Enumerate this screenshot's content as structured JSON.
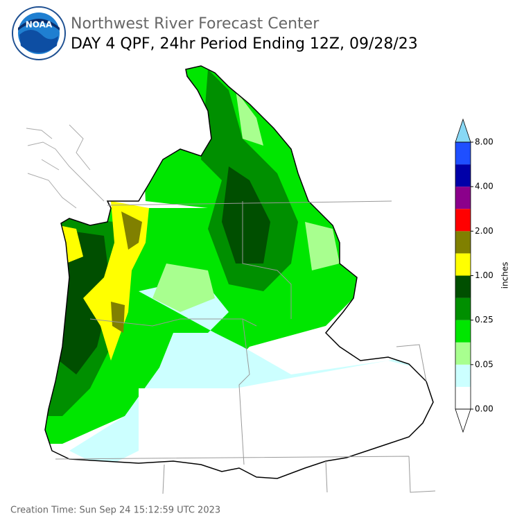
{
  "header": {
    "logo_text": "NOAA",
    "title": "Northwest River Forecast Center",
    "subtitle": "DAY 4 QPF, 24hr Period Ending 12Z, 09/28/23"
  },
  "legend": {
    "label": "inches",
    "colors": [
      "#ffffff",
      "#ccffff",
      "#a8ff8f",
      "#00e600",
      "#008f00",
      "#004f00",
      "#ffff00",
      "#808000",
      "#ff0000",
      "#8b008b",
      "#0000a8",
      "#1f4fff"
    ],
    "over_color": "#88d8f5",
    "ticks": [
      {
        "value": 0,
        "label": "0.00"
      },
      {
        "value": 0.05,
        "label": "0.05"
      },
      {
        "value": 0.25,
        "label": "0.25"
      },
      {
        "value": 1,
        "label": "1.00"
      },
      {
        "value": 2,
        "label": "2.00"
      },
      {
        "value": 4,
        "label": "4.00"
      },
      {
        "value": 8,
        "label": "8.00"
      }
    ]
  },
  "footer": {
    "creation_time": "Creation Time: Sun Sep 24 15:12:59 UTC 2023"
  }
}
